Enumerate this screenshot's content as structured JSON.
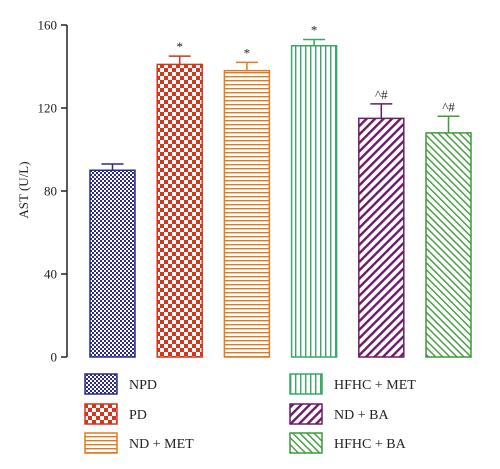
{
  "chart_data": {
    "type": "bar",
    "ylabel": "AST (U/L)",
    "ylim": [
      0,
      160
    ],
    "yticks": [
      0,
      40,
      80,
      120,
      160
    ],
    "categories": [
      "NPD",
      "PD",
      "ND + MET",
      "HFHC + MET",
      "ND + BA",
      "HFHC + BA"
    ],
    "values": [
      90,
      141,
      138,
      150,
      115,
      108
    ],
    "errors": [
      3,
      4,
      4,
      3,
      7,
      8
    ],
    "annotations": [
      "",
      "*",
      "*",
      "*",
      "^#",
      "^#"
    ],
    "colors": [
      "#2b2a8c",
      "#d6351c",
      "#e07b22",
      "#3aa66a",
      "#6a1c6b",
      "#3f9a3a"
    ],
    "patterns": [
      "checker-small",
      "checker-large",
      "horizontal-lines",
      "vertical-lines",
      "diagonal-right",
      "diagonal-left"
    ],
    "grid": false,
    "legend_position": "bottom"
  }
}
